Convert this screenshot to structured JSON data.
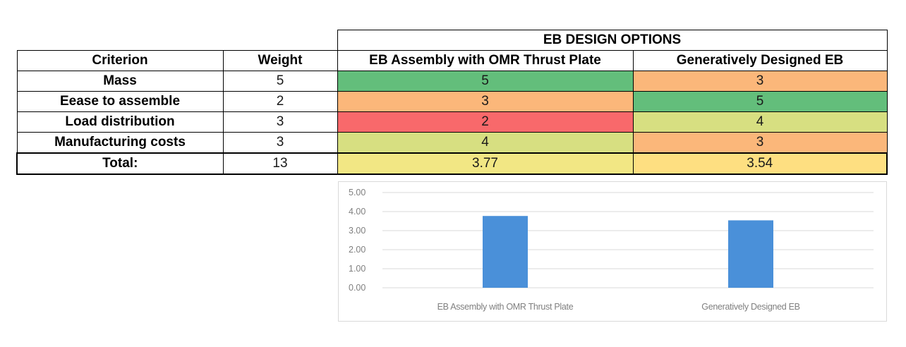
{
  "table": {
    "group_header": "EB DESIGN OPTIONS",
    "columns": {
      "criterion": "Criterion",
      "weight": "Weight",
      "option1": "EB Assembly with OMR Thrust Plate",
      "option2": "Generatively Designed EB"
    },
    "rows": [
      {
        "criterion": "Mass",
        "weight": "5",
        "option1": "5",
        "option2": "3",
        "option1_color": "#63be7b",
        "option2_color": "#fbb77a"
      },
      {
        "criterion": "Eease to assemble",
        "weight": "2",
        "option1": "3",
        "option2": "5",
        "option1_color": "#fbb77a",
        "option2_color": "#63be7b"
      },
      {
        "criterion": "Load distribution",
        "weight": "3",
        "option1": "2",
        "option2": "4",
        "option1_color": "#f8696b",
        "option2_color": "#d7df81"
      },
      {
        "criterion": "Manufacturing costs",
        "weight": "3",
        "option1": "4",
        "option2": "3",
        "option1_color": "#d7df81",
        "option2_color": "#fbb77a"
      }
    ],
    "total": {
      "label": "Total:",
      "weight": "13",
      "option1": "3.77",
      "option2": "3.54",
      "option1_color": "#f2e784",
      "option2_color": "#fedf81"
    }
  },
  "chart_data": {
    "type": "bar",
    "title": "",
    "xlabel": "",
    "ylabel": "",
    "categories": [
      "EB Assembly with OMR Thrust Plate",
      "Generatively Designed EB"
    ],
    "values": [
      3.77,
      3.54
    ],
    "ylim": [
      0,
      5
    ],
    "yticks": [
      "0.00",
      "1.00",
      "2.00",
      "3.00",
      "4.00",
      "5.00"
    ],
    "grid": true,
    "legend": "none",
    "bar_color": "#4a90d9"
  }
}
